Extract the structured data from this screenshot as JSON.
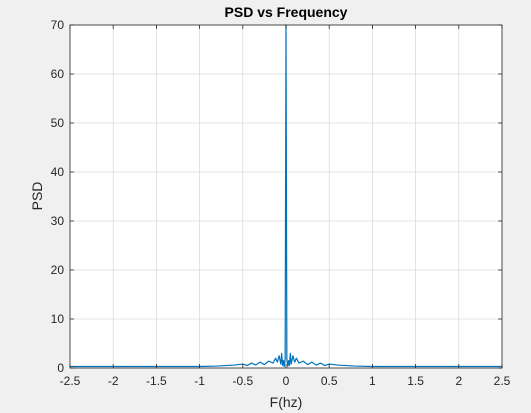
{
  "chart_data": {
    "type": "line",
    "title": "PSD vs Frequency",
    "xlabel": "F(hz)",
    "ylabel": "PSD",
    "xlim": [
      -2.5,
      2.5
    ],
    "ylim": [
      0,
      70
    ],
    "x_ticks": [
      -2.5,
      -2,
      -1.5,
      -1,
      -0.5,
      0,
      0.5,
      1,
      1.5,
      2,
      2.5
    ],
    "x_tick_labels": [
      "-2.5",
      "-2",
      "-1.5",
      "-1",
      "-0.5",
      "0",
      "0.5",
      "1",
      "1.5",
      "2",
      "2.5"
    ],
    "y_ticks": [
      0,
      10,
      20,
      30,
      40,
      50,
      60,
      70
    ],
    "y_tick_labels": [
      "0",
      "10",
      "20",
      "30",
      "40",
      "50",
      "60",
      "70"
    ],
    "grid": true,
    "legend": "none",
    "colors": {
      "background": "#f0f0f0",
      "axes_background": "#ffffff",
      "line": "#0072bd",
      "grid": "#dcdcdc",
      "axis": "#262626"
    },
    "series": [
      {
        "x": [
          -2.5,
          -2.0,
          -1.5,
          -1.0,
          -0.8,
          -0.6,
          -0.5,
          -0.45,
          -0.4,
          -0.35,
          -0.3,
          -0.25,
          -0.2,
          -0.15,
          -0.12,
          -0.1,
          -0.08,
          -0.06,
          -0.05,
          -0.04,
          -0.03,
          -0.02,
          -0.01,
          0,
          0.01,
          0.02,
          0.03,
          0.04,
          0.05,
          0.06,
          0.08,
          0.1,
          0.12,
          0.15,
          0.2,
          0.25,
          0.3,
          0.35,
          0.4,
          0.45,
          0.5,
          0.6,
          0.8,
          1.0,
          1.5,
          2.0,
          2.5
        ],
        "y": [
          0.3,
          0.3,
          0.3,
          0.3,
          0.4,
          0.6,
          0.8,
          0.5,
          1.0,
          0.6,
          1.2,
          0.7,
          1.4,
          1.0,
          2.0,
          1.2,
          2.5,
          0.8,
          3.0,
          0.5,
          1.5,
          0.3,
          2.0,
          70,
          2.0,
          0.3,
          1.5,
          0.5,
          3.0,
          0.8,
          2.5,
          1.2,
          2.0,
          1.0,
          1.4,
          0.7,
          1.2,
          0.6,
          1.0,
          0.5,
          0.8,
          0.6,
          0.4,
          0.3,
          0.3,
          0.3,
          0.3
        ]
      }
    ]
  }
}
